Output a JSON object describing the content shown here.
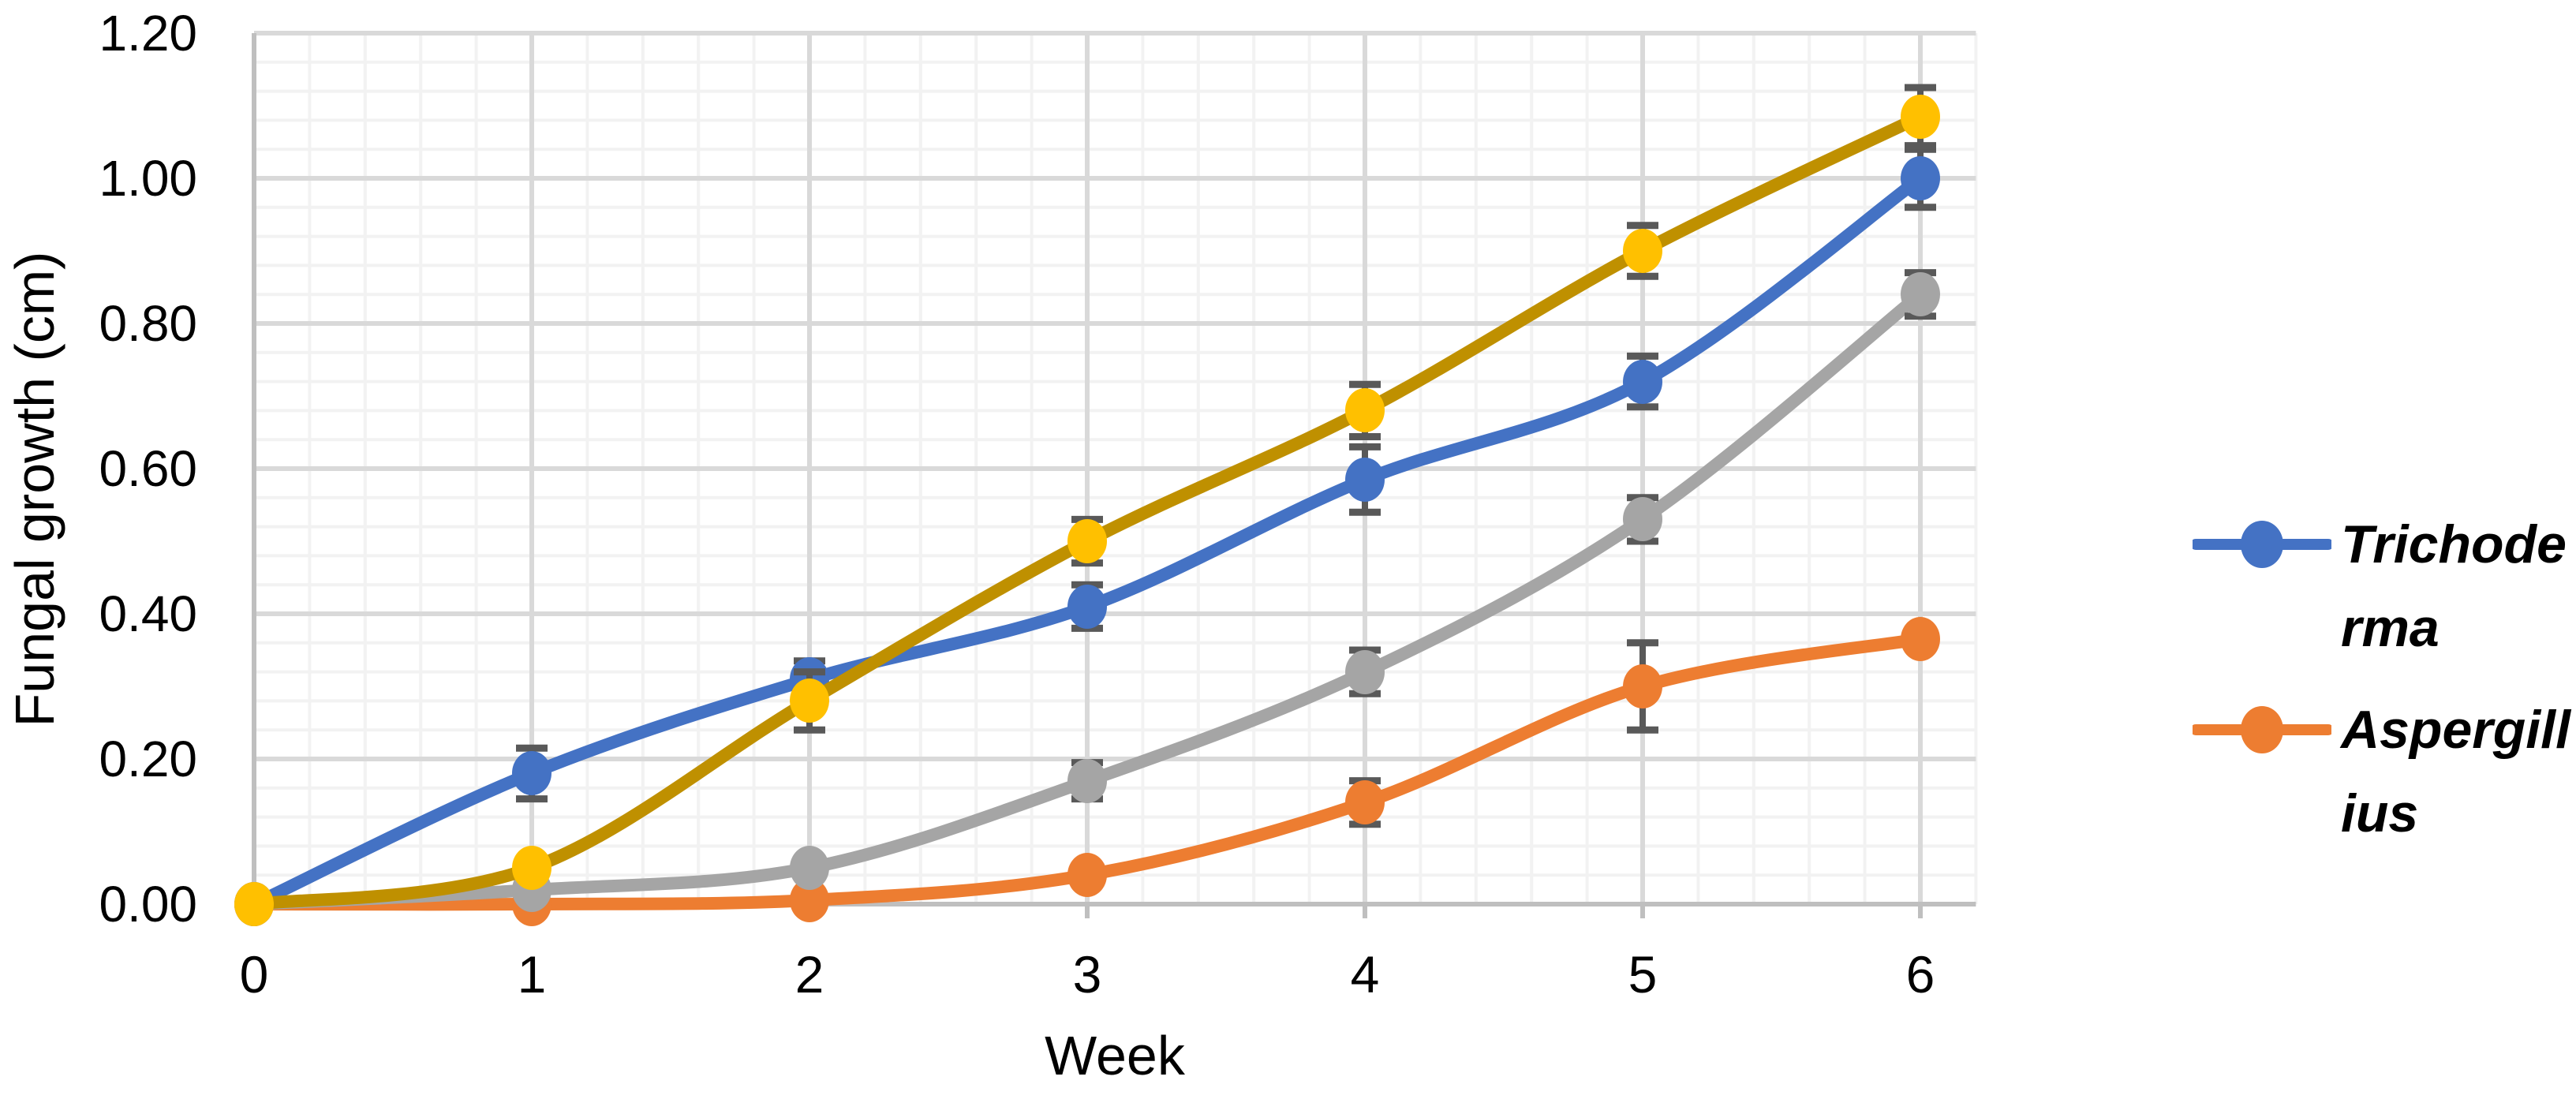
{
  "figure": {
    "background": "#FFFFFF",
    "x_axis_title": "Week",
    "y_axis_title": "Fungal growth (cm)"
  },
  "legend": {
    "position": "right",
    "items": [
      {
        "label": "Trichode\nrma",
        "full_text_shown": "Trichoderma",
        "color": "#4472C4"
      },
      {
        "label": "Aspergill\nius",
        "full_text_shown": "Aspergillius",
        "color": "#ED7D31"
      }
    ]
  },
  "chart_data": {
    "type": "line",
    "title": "",
    "xlabel": "Week",
    "ylabel": "Fungal growth (cm)",
    "x": [
      0,
      1,
      2,
      3,
      4,
      5,
      6
    ],
    "x_tick_labels": [
      "0",
      "1",
      "2",
      "3",
      "4",
      "5",
      "6"
    ],
    "y_tick_labels": [
      "0.00",
      "0.20",
      "0.40",
      "0.60",
      "0.80",
      "1.00",
      "1.20"
    ],
    "ylim": [
      0,
      1.2
    ],
    "xlim": [
      0,
      6.2
    ],
    "y_major_step": 0.2,
    "y_minor_step": 0.04,
    "x_major_step": 1,
    "x_minor_step": 0.2,
    "grid": "major-and-minor",
    "legend_position": "right",
    "series": [
      {
        "name": "Trichoderma",
        "in_legend": true,
        "line_color": "#4472C4",
        "marker_color": "#4472C4",
        "smooth": true,
        "values": [
          0.0,
          0.18,
          0.31,
          0.41,
          0.585,
          0.72,
          1.0
        ],
        "errors": [
          0,
          0.035,
          0.025,
          0.03,
          0.045,
          0.035,
          0.04
        ]
      },
      {
        "name": "Aspergillius",
        "in_legend": true,
        "line_color": "#ED7D31",
        "marker_color": "#ED7D31",
        "smooth": true,
        "values": [
          0.0,
          0.0,
          0.005,
          0.04,
          0.14,
          0.3,
          0.365
        ],
        "errors": [
          0,
          0,
          0,
          0,
          0.03,
          0.06,
          0
        ]
      },
      {
        "name": "unlabeled-gray-series",
        "in_legend": false,
        "line_color": "#A5A5A5",
        "marker_color": "#A5A5A5",
        "smooth": true,
        "values": [
          0.0,
          0.02,
          0.05,
          0.17,
          0.32,
          0.53,
          0.84
        ],
        "errors": [
          0,
          0,
          0,
          0.025,
          0.03,
          0.03,
          0.03
        ]
      },
      {
        "name": "unlabeled-gold-series",
        "in_legend": false,
        "line_color": "#BF9000",
        "marker_color": "#FFC000",
        "smooth": true,
        "values": [
          0.0,
          0.05,
          0.28,
          0.5,
          0.68,
          0.9,
          1.085
        ],
        "errors": [
          0,
          0.012,
          0.04,
          0.03,
          0.036,
          0.035,
          0.04
        ]
      }
    ],
    "style": {
      "error_bar_color": "#595959",
      "major_grid_color": "#D9D9D9",
      "minor_grid_color": "#F2F2F2",
      "axis_line_color": "#BFBFBF",
      "text_color": "#000000"
    }
  }
}
